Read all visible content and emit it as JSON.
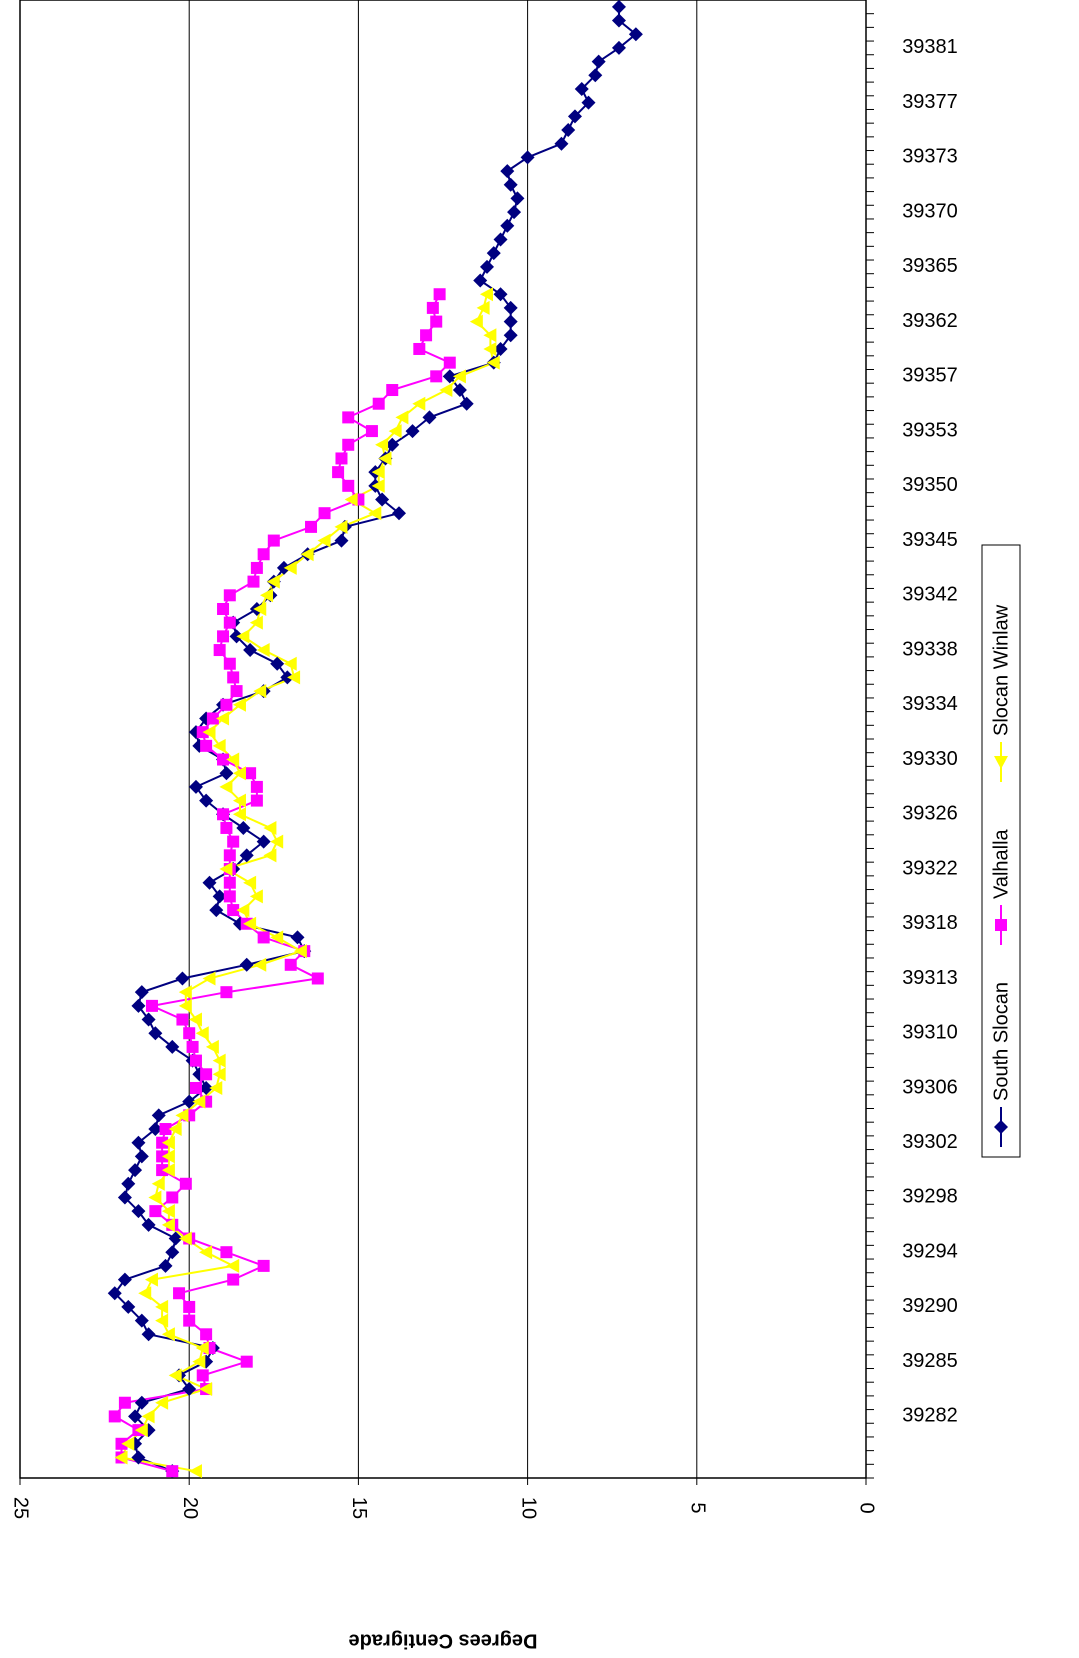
{
  "chart_data": {
    "type": "line",
    "axis_title": "Degrees Centigrade",
    "categories": [
      null,
      null,
      null,
      null,
      "39282",
      null,
      null,
      null,
      "39285",
      null,
      null,
      null,
      "39290",
      null,
      null,
      null,
      "39294",
      null,
      null,
      null,
      "39298",
      null,
      null,
      null,
      "39302",
      null,
      null,
      null,
      "39306",
      null,
      null,
      null,
      "39310",
      null,
      null,
      null,
      "39313",
      null,
      null,
      null,
      "39318",
      null,
      null,
      null,
      "39322",
      null,
      null,
      null,
      "39326",
      null,
      null,
      null,
      "39330",
      null,
      null,
      null,
      "39334",
      null,
      null,
      null,
      "39338",
      null,
      null,
      null,
      "39342",
      null,
      null,
      null,
      "39345",
      null,
      null,
      null,
      "39350",
      null,
      null,
      null,
      "39353",
      null,
      null,
      null,
      "39357",
      null,
      null,
      null,
      "39362",
      null,
      null,
      null,
      "39365",
      null,
      null,
      null,
      "39370",
      null,
      null,
      null,
      "39373",
      null,
      null,
      null,
      "39377",
      null,
      null,
      null,
      "39381",
      null,
      null,
      null
    ],
    "series": [
      {
        "name": "South Slocan",
        "color": "#000080",
        "marker": "diamond",
        "values": [
          20.5,
          21.5,
          21.6,
          21.2,
          21.6,
          21.4,
          20.0,
          20.3,
          19.5,
          19.3,
          21.2,
          21.4,
          21.8,
          22.2,
          21.9,
          20.7,
          20.5,
          20.4,
          21.2,
          21.5,
          21.9,
          21.8,
          21.6,
          21.4,
          21.5,
          21.0,
          20.9,
          20.0,
          19.5,
          19.7,
          19.9,
          20.5,
          21.0,
          21.2,
          21.5,
          21.4,
          20.2,
          18.3,
          16.6,
          16.8,
          18.5,
          19.2,
          19.1,
          19.4,
          18.7,
          18.3,
          17.8,
          18.4,
          19.0,
          19.5,
          19.8,
          18.9,
          19.0,
          19.7,
          19.8,
          19.5,
          19.0,
          17.8,
          17.1,
          17.4,
          18.2,
          18.6,
          18.7,
          18.0,
          17.6,
          17.5,
          17.2,
          16.5,
          15.5,
          15.4,
          13.8,
          14.3,
          14.5,
          14.5,
          14.2,
          14.0,
          13.4,
          12.9,
          11.8,
          12.0,
          12.3,
          11.0,
          10.8,
          10.5,
          10.5,
          10.5,
          10.8,
          11.4,
          11.2,
          11.0,
          10.8,
          10.6,
          10.4,
          10.3,
          10.5,
          10.6,
          10.0,
          9.0,
          8.8,
          8.6,
          8.2,
          8.4,
          8.0,
          7.9,
          7.3,
          6.8,
          7.3,
          7.3
        ]
      },
      {
        "name": "Valhalla",
        "color": "#FF00FF",
        "marker": "square",
        "values": [
          20.5,
          22.0,
          22.0,
          21.5,
          22.2,
          21.9,
          19.5,
          19.6,
          18.3,
          19.4,
          19.5,
          20.0,
          20.0,
          20.3,
          18.7,
          17.8,
          18.9,
          20.0,
          20.5,
          21.0,
          20.5,
          20.1,
          20.8,
          20.8,
          20.8,
          20.7,
          20.0,
          19.5,
          19.8,
          19.5,
          19.8,
          19.9,
          20.0,
          20.2,
          21.1,
          18.9,
          16.2,
          17.0,
          16.6,
          17.8,
          18.3,
          18.7,
          18.8,
          18.8,
          18.8,
          18.8,
          18.7,
          18.9,
          19.0,
          18.0,
          18.0,
          18.2,
          19.0,
          19.5,
          19.6,
          19.3,
          18.9,
          18.6,
          18.7,
          18.8,
          19.1,
          19.0,
          18.8,
          19.0,
          18.8,
          18.1,
          18.0,
          17.8,
          17.5,
          16.4,
          16.0,
          15.0,
          15.3,
          15.6,
          15.5,
          15.3,
          14.6,
          15.3,
          14.4,
          14.0,
          12.7,
          12.3,
          13.2,
          13.0,
          12.7,
          12.8,
          12.6,
          null,
          null,
          null,
          null,
          null,
          null,
          null,
          null,
          null,
          null,
          null,
          null,
          null,
          null,
          null,
          null,
          null,
          null,
          null,
          null,
          null
        ]
      },
      {
        "name": "Slocan Winlaw",
        "color": "#FFFF00",
        "marker": "triangle",
        "values": [
          19.8,
          22.0,
          21.8,
          21.4,
          21.2,
          20.8,
          19.5,
          20.4,
          19.7,
          19.6,
          20.6,
          20.8,
          20.8,
          21.3,
          21.1,
          18.7,
          19.5,
          20.1,
          20.6,
          20.6,
          21.0,
          20.9,
          20.6,
          20.6,
          20.6,
          20.4,
          20.2,
          19.7,
          19.2,
          19.1,
          19.1,
          19.3,
          19.6,
          19.8,
          20.1,
          20.1,
          19.4,
          17.9,
          16.7,
          17.4,
          18.2,
          18.4,
          18.0,
          18.2,
          18.9,
          17.6,
          17.4,
          17.6,
          18.5,
          18.5,
          18.9,
          18.5,
          18.7,
          19.1,
          19.4,
          19.0,
          18.5,
          17.9,
          16.9,
          17.0,
          17.8,
          18.4,
          18.0,
          17.9,
          17.7,
          17.5,
          17.0,
          16.5,
          16.0,
          15.5,
          14.5,
          15.2,
          14.4,
          14.4,
          14.2,
          14.3,
          13.9,
          13.7,
          13.2,
          12.4,
          12.0,
          11.0,
          11.1,
          11.1,
          11.5,
          11.3,
          11.2,
          null,
          null,
          null,
          null,
          null,
          null,
          null,
          null,
          null,
          null,
          null,
          null,
          null,
          null,
          null,
          null,
          null,
          null,
          null,
          null,
          null
        ]
      }
    ],
    "ylim": [
      0,
      25
    ],
    "yticks": [
      0,
      5,
      10,
      15,
      20,
      25
    ],
    "grid": true
  }
}
